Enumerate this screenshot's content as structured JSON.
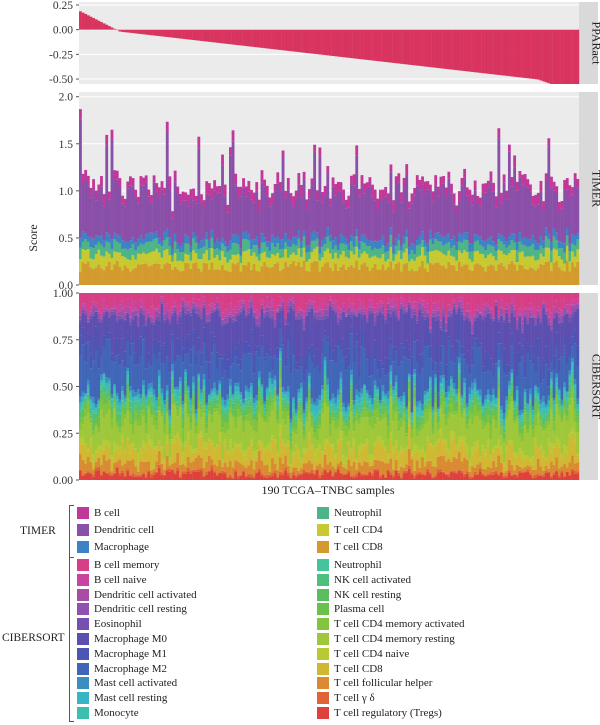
{
  "chart_data": {
    "type": "bar",
    "xlabel": "190 TCGA–TNBC samples",
    "ylabel": "Score",
    "n_samples": 190,
    "panels": [
      {
        "strip_label": "PPARact",
        "ylim": [
          -0.55,
          0.28
        ],
        "yticks": [
          "0.25",
          "0.00",
          "-0.25",
          "-0.50"
        ],
        "ytick_values": [
          0.25,
          0.0,
          -0.25,
          -0.5
        ],
        "color": "#d8345f",
        "values_description_range": [
          0.25,
          -0.55
        ]
      },
      {
        "strip_label": "TIMER",
        "ylim": [
          0,
          2.05
        ],
        "yticks": [
          "0.0",
          "0.5",
          "1.0",
          "1.5",
          "2.0"
        ],
        "ytick_values": [
          0.0,
          0.5,
          1.0,
          1.5,
          2.0
        ],
        "stack_order": [
          "T cell CD8",
          "T cell CD4",
          "Neutrophil",
          "Macrophage",
          "Dendritic cell",
          "B cell"
        ]
      },
      {
        "strip_label": "CIBERSORT",
        "ylim": [
          0,
          1.0
        ],
        "yticks": [
          "0.00",
          "0.25",
          "0.50",
          "0.75",
          "1.00"
        ],
        "ytick_values": [
          0.0,
          0.25,
          0.5,
          0.75,
          1.0
        ],
        "stack_order": [
          "T cell regulatory (Tregs)",
          "T cell γ δ",
          "T cell follicular helper",
          "T cell CD8",
          "T cell CD4 naive",
          "T cell CD4 memory resting",
          "T cell CD4 memory activated",
          "Plasma cell",
          "NK cell resting",
          "NK cell activated",
          "Neutrophil",
          "Monocyte",
          "Mast cell resting",
          "Mast cell activated",
          "Macrophage M2",
          "Macrophage M1",
          "Macrophage M0",
          "Eosinophil",
          "Dendritic cell resting",
          "Dendritic cell activated",
          "B cell naive",
          "B cell memory"
        ]
      }
    ]
  },
  "legend": {
    "timer": {
      "label": "TIMER",
      "left": [
        {
          "name": "B cell",
          "color": "#c2389a"
        },
        {
          "name": "Dendritic cell",
          "color": "#8a4fa8"
        },
        {
          "name": "Macrophage",
          "color": "#3d82c4"
        }
      ],
      "right": [
        {
          "name": "Neutrophil",
          "color": "#4cb486"
        },
        {
          "name": "T cell CD4",
          "color": "#c8c930"
        },
        {
          "name": "T cell CD8",
          "color": "#d39a2e"
        }
      ]
    },
    "cibersort": {
      "label": "CIBERSORT",
      "left": [
        {
          "name": "B cell memory",
          "color": "#d63f85"
        },
        {
          "name": "B cell naive",
          "color": "#c9449f"
        },
        {
          "name": "Dendritic cell activated",
          "color": "#a94ca6"
        },
        {
          "name": "Dendritic cell resting",
          "color": "#9050ad"
        },
        {
          "name": "Eosinophil",
          "color": "#7650b0"
        },
        {
          "name": "Macrophage M0",
          "color": "#5d4faf"
        },
        {
          "name": "Macrophage M1",
          "color": "#4d55b4"
        },
        {
          "name": "Macrophage M2",
          "color": "#4166b8"
        },
        {
          "name": "Mast cell activated",
          "color": "#3b8fc0"
        },
        {
          "name": "Mast cell resting",
          "color": "#36b5c4"
        },
        {
          "name": "Monocyte",
          "color": "#3bbfae"
        }
      ],
      "right": [
        {
          "name": "Neutrophil",
          "color": "#45c39a"
        },
        {
          "name": "NK cell activated",
          "color": "#4fbf7d"
        },
        {
          "name": "NK cell resting",
          "color": "#5bbd5f"
        },
        {
          "name": "Plasma cell",
          "color": "#69c04b"
        },
        {
          "name": "T cell CD4 memory activated",
          "color": "#82c43c"
        },
        {
          "name": "T cell CD4 memory resting",
          "color": "#9ec83a"
        },
        {
          "name": "T cell CD4 naive",
          "color": "#b8c934"
        },
        {
          "name": "T cell CD8",
          "color": "#d0b832"
        },
        {
          "name": "T cell follicular helper",
          "color": "#da8a32"
        },
        {
          "name": "T cell γ δ",
          "color": "#df6336"
        },
        {
          "name": "T cell regulatory (Tregs)",
          "color": "#e0403c"
        }
      ]
    }
  }
}
